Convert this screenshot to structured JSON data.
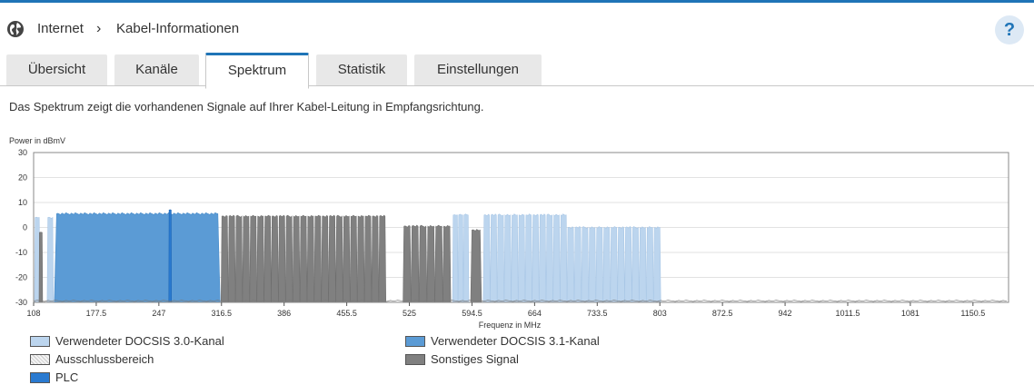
{
  "breadcrumb": {
    "root": "Internet",
    "separator": "›",
    "current": "Kabel-Informationen"
  },
  "help": {
    "label": "?"
  },
  "tabs": [
    {
      "label": "Übersicht",
      "active": false
    },
    {
      "label": "Kanäle",
      "active": false
    },
    {
      "label": "Spektrum",
      "active": true
    },
    {
      "label": "Statistik",
      "active": false
    },
    {
      "label": "Einstellungen",
      "active": false
    }
  ],
  "description": "Das Spektrum zeigt die vorhandenen Signale auf Ihrer Kabel-Leitung in Empfangsrichtung.",
  "colors": {
    "accent": "#1f74b7",
    "docsis30": "#bcd5ee",
    "docsis31": "#5b9bd5",
    "plc": "#2a7ad0",
    "other": "#808080"
  },
  "chart_data": {
    "type": "area",
    "ylabel": "Power in dBmV",
    "xlabel": "Frequenz in MHz",
    "ylim": [
      -30,
      30
    ],
    "xlim": [
      108,
      1190
    ],
    "y_ticks": [
      "30",
      "20",
      "10",
      "0",
      "-10",
      "-20",
      "-30"
    ],
    "x_ticks": [
      "108",
      "177.5",
      "247",
      "316.5",
      "386",
      "455.5",
      "525",
      "594.5",
      "664",
      "733.5",
      "803",
      "872.5",
      "942",
      "1011.5",
      "1081",
      "1150.5"
    ],
    "grid": true,
    "legend": [
      {
        "label": "Verwendeter DOCSIS 3.0-Kanal",
        "color": "#bcd5ee",
        "hatch": false
      },
      {
        "label": "Verwendeter DOCSIS 3.1-Kanal",
        "color": "#5b9bd5",
        "hatch": false
      },
      {
        "label": "Ausschlussbereich",
        "color": "#ececec",
        "hatch": true
      },
      {
        "label": "Sonstiges Signal",
        "color": "#808080",
        "hatch": false
      },
      {
        "label": "PLC",
        "color": "#2a7ad0",
        "hatch": false
      }
    ],
    "series": [
      {
        "kind": "docsis30",
        "blocks": [
          {
            "start": 109,
            "end": 115,
            "level": 4
          },
          {
            "start": 123,
            "end": 130,
            "level": 4
          },
          {
            "start": 573,
            "end": 591,
            "level": 5,
            "channels": 3
          },
          {
            "start": 607,
            "end": 700,
            "level": 5,
            "channels": 12
          },
          {
            "start": 700,
            "end": 804,
            "level": 0,
            "channels": 13
          }
        ]
      },
      {
        "kind": "docsis31",
        "blocks": [
          {
            "start": 131,
            "end": 315,
            "level": 5.5
          }
        ]
      },
      {
        "kind": "plc",
        "blocks": [
          {
            "start": 258,
            "end": 261,
            "level": 7
          }
        ]
      },
      {
        "kind": "other",
        "blocks": [
          {
            "start": 114,
            "end": 118,
            "level": -2
          },
          {
            "start": 316,
            "end": 499,
            "level": 4.5,
            "channels": 23
          },
          {
            "start": 518,
            "end": 571,
            "level": 0.5,
            "channels": 6
          },
          {
            "start": 593,
            "end": 605,
            "level": -1,
            "channels": 1
          }
        ]
      }
    ]
  }
}
